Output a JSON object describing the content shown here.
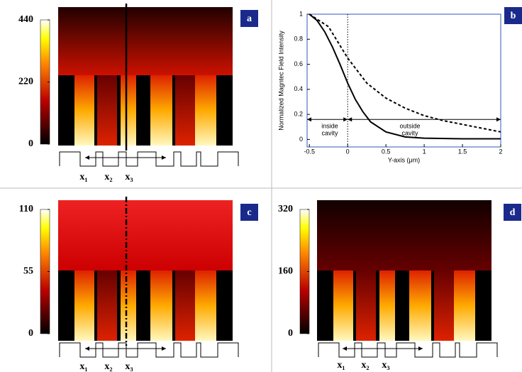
{
  "chart_data": [
    {
      "type": "heatmap",
      "panel": "a",
      "clim": [
        0,
        440
      ],
      "cticks": [
        0,
        220,
        440
      ],
      "labels": [
        "x₁",
        "x₂",
        "x₃"
      ]
    },
    {
      "type": "line",
      "panel": "b",
      "xlabel": "Y-axis (μm)",
      "ylabel": "Normalized Magntec Field Intensity",
      "xlim": [
        -0.53,
        2
      ],
      "ylim": [
        -0.06,
        1
      ],
      "xticks": [
        -0.5,
        0,
        0.5,
        1,
        1.5,
        2
      ],
      "yticks": [
        0,
        0.2,
        0.4,
        0.6,
        0.8,
        1
      ],
      "annotations": [
        [
          "inside",
          "cavity"
        ],
        [
          "outside",
          "cavity"
        ]
      ],
      "series": [
        {
          "color": "#000000",
          "style": "solid",
          "x": [
            -0.5,
            -0.4,
            -0.3,
            -0.2,
            -0.1,
            0,
            0.1,
            0.2,
            0.3,
            0.5,
            0.75,
            1,
            1.5,
            2
          ],
          "values": [
            1,
            0.95,
            0.86,
            0.74,
            0.6,
            0.45,
            0.32,
            0.22,
            0.14,
            0.06,
            0.02,
            0.01,
            0.005,
            0.005
          ]
        },
        {
          "color": "#000000",
          "style": "dashed",
          "x": [
            -0.5,
            -0.25,
            0,
            0.25,
            0.5,
            0.75,
            1,
            1.25,
            1.5,
            1.75,
            2
          ],
          "values": [
            1,
            0.9,
            0.65,
            0.45,
            0.33,
            0.25,
            0.19,
            0.15,
            0.12,
            0.09,
            0.06
          ]
        }
      ]
    },
    {
      "type": "heatmap",
      "panel": "c",
      "clim": [
        0,
        110
      ],
      "cticks": [
        0,
        55,
        110
      ],
      "labels": [
        "x₁",
        "x₂",
        "x₃"
      ]
    },
    {
      "type": "heatmap",
      "panel": "d",
      "clim": [
        0,
        320
      ],
      "cticks": [
        0,
        160,
        320
      ],
      "labels": [
        "x₁",
        "x₂",
        "x₃"
      ]
    }
  ]
}
